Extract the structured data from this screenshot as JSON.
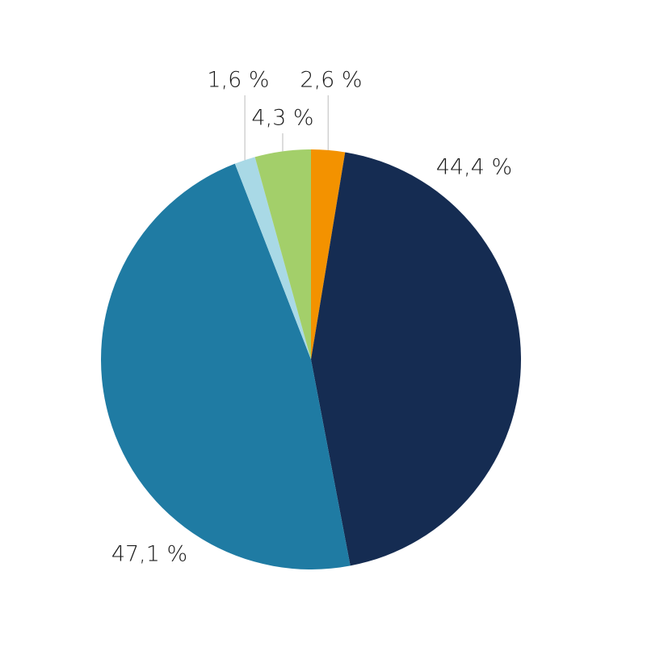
{
  "chart_data": {
    "type": "pie",
    "values": [
      2.6,
      44.4,
      47.1,
      1.6,
      4.3
    ],
    "value_labels": [
      "2,6 %",
      "44,4 %",
      "47,1 %",
      "1,6 %",
      "4,3 %"
    ],
    "colors": [
      "#f39200",
      "#152c52",
      "#1f7ba3",
      "#a9d9e6",
      "#a3cf6a"
    ]
  }
}
